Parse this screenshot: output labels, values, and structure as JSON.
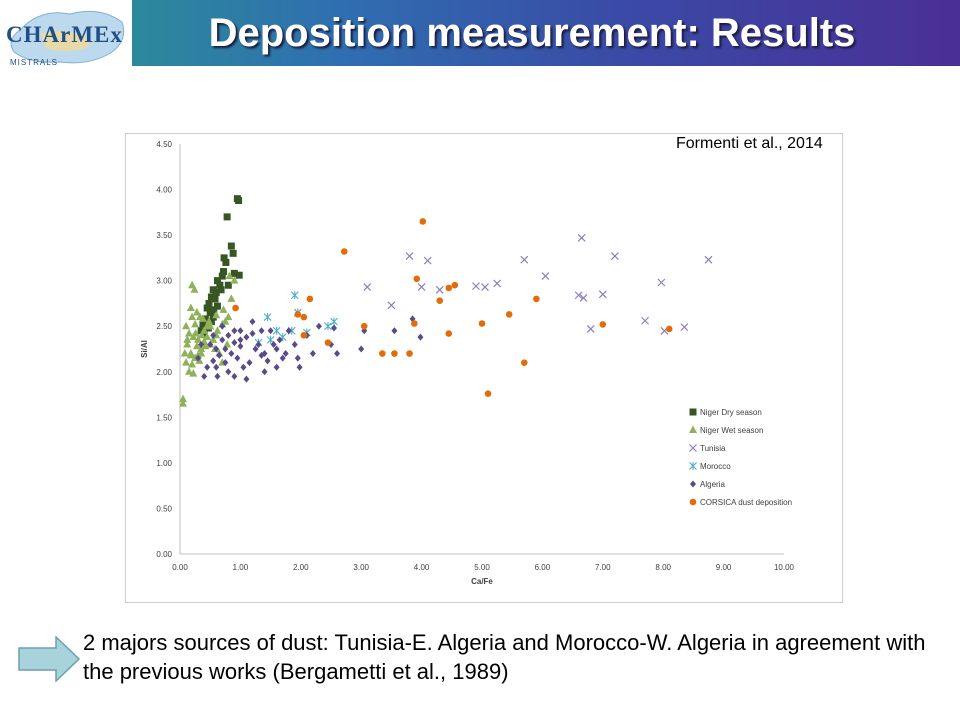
{
  "header": {
    "title": "Deposition measurement: Results",
    "logo_text": "CHArMEx",
    "logo_sub": "MISTRALS"
  },
  "citation": "Formenti et al., 2014",
  "conclusion": "2 majors sources of dust: Tunisia-E. Algeria and Morocco-W. Algeria in agreement with the previous works (Bergametti et al., 1989)",
  "colors": {
    "header_left": "#2a9a8e",
    "header_right": "#4a2f96",
    "arrow_fill": "#a9d3dc",
    "niger_dry": "#375623",
    "niger_wet": "#8fb15a",
    "tunisia": "#8e7cc3",
    "morocco": "#4bacc6",
    "algeria": "#5b4a8b",
    "corsica": "#e36c09"
  },
  "chart_data": {
    "type": "scatter",
    "xlabel": "Ca/Fe",
    "ylabel": "Si/Al",
    "xlim": [
      0,
      10
    ],
    "ylim": [
      0,
      4.5
    ],
    "xticks": [
      "0.00",
      "1.00",
      "2.00",
      "3.00",
      "4.00",
      "5.00",
      "6.00",
      "7.00",
      "8.00",
      "9.00",
      "10.00"
    ],
    "yticks": [
      "0.00",
      "0.50",
      "1.00",
      "1.50",
      "2.00",
      "2.50",
      "3.00",
      "3.50",
      "4.00",
      "4.50"
    ],
    "grid": false,
    "legend_position": "bottom-right",
    "series": [
      {
        "name": "Niger Dry season",
        "marker": "square",
        "color": "#375623",
        "points": [
          [
            0.95,
            3.9
          ],
          [
            0.97,
            3.88
          ],
          [
            0.78,
            3.7
          ],
          [
            0.85,
            3.38
          ],
          [
            0.88,
            3.3
          ],
          [
            0.73,
            3.25
          ],
          [
            0.76,
            3.2
          ],
          [
            0.9,
            3.08
          ],
          [
            0.98,
            3.06
          ],
          [
            0.7,
            3.05
          ],
          [
            0.62,
            3.0
          ],
          [
            0.66,
            2.95
          ],
          [
            0.55,
            2.9
          ],
          [
            0.6,
            2.87
          ],
          [
            0.52,
            2.82
          ],
          [
            0.58,
            2.8
          ],
          [
            0.48,
            2.75
          ],
          [
            0.62,
            2.72
          ],
          [
            0.45,
            2.7
          ],
          [
            0.5,
            2.65
          ],
          [
            0.55,
            2.6
          ],
          [
            0.42,
            2.58
          ],
          [
            0.38,
            2.52
          ],
          [
            0.47,
            2.48
          ],
          [
            0.35,
            2.45
          ],
          [
            0.4,
            2.42
          ],
          [
            0.52,
            2.55
          ],
          [
            0.56,
            2.68
          ],
          [
            0.68,
            2.9
          ],
          [
            0.8,
            2.95
          ],
          [
            0.72,
            3.1
          ]
        ]
      },
      {
        "name": "Niger Wet season",
        "marker": "triangle",
        "color": "#8fb15a",
        "points": [
          [
            0.18,
            2.7
          ],
          [
            0.2,
            2.6
          ],
          [
            0.25,
            2.52
          ],
          [
            0.15,
            2.42
          ],
          [
            0.22,
            2.38
          ],
          [
            0.3,
            2.35
          ],
          [
            0.12,
            2.3
          ],
          [
            0.28,
            2.28
          ],
          [
            0.35,
            2.25
          ],
          [
            0.08,
            2.2
          ],
          [
            0.18,
            2.18
          ],
          [
            0.25,
            2.15
          ],
          [
            0.32,
            2.12
          ],
          [
            0.1,
            2.1
          ],
          [
            0.2,
            2.08
          ],
          [
            0.15,
            2.0
          ],
          [
            0.22,
            1.98
          ],
          [
            0.05,
            1.65
          ],
          [
            0.05,
            1.7
          ],
          [
            0.4,
            2.45
          ],
          [
            0.45,
            2.5
          ],
          [
            0.48,
            2.55
          ],
          [
            0.38,
            2.58
          ],
          [
            0.33,
            2.6
          ],
          [
            0.28,
            2.65
          ],
          [
            0.5,
            2.3
          ],
          [
            0.55,
            2.35
          ],
          [
            0.6,
            2.4
          ],
          [
            0.62,
            2.45
          ],
          [
            0.7,
            2.52
          ],
          [
            0.75,
            2.55
          ],
          [
            0.8,
            2.6
          ],
          [
            0.85,
            2.8
          ],
          [
            0.9,
            3.0
          ],
          [
            0.82,
            3.05
          ],
          [
            0.45,
            2.38
          ],
          [
            0.4,
            2.33
          ],
          [
            0.35,
            2.2
          ],
          [
            0.3,
            2.18
          ],
          [
            0.42,
            2.28
          ],
          [
            0.18,
            2.2
          ],
          [
            0.12,
            2.35
          ],
          [
            0.26,
            2.42
          ],
          [
            0.65,
            2.2
          ],
          [
            0.7,
            2.1
          ],
          [
            0.58,
            2.25
          ],
          [
            0.78,
            2.3
          ],
          [
            0.2,
            2.95
          ],
          [
            0.24,
            2.9
          ],
          [
            0.1,
            2.5
          ],
          [
            0.36,
            2.4
          ],
          [
            0.6,
            2.62
          ],
          [
            0.72,
            2.68
          ],
          [
            0.5,
            2.5
          ]
        ]
      },
      {
        "name": "Tunisia",
        "marker": "x",
        "color": "#8e7cc3",
        "points": [
          [
            6.65,
            3.47
          ],
          [
            3.8,
            3.27
          ],
          [
            4.1,
            3.22
          ],
          [
            5.7,
            3.23
          ],
          [
            7.2,
            3.27
          ],
          [
            8.75,
            3.23
          ],
          [
            6.05,
            3.05
          ],
          [
            3.1,
            2.93
          ],
          [
            4.0,
            2.93
          ],
          [
            4.3,
            2.9
          ],
          [
            4.9,
            2.94
          ],
          [
            5.05,
            2.93
          ],
          [
            5.25,
            2.97
          ],
          [
            7.97,
            2.98
          ],
          [
            6.6,
            2.84
          ],
          [
            6.68,
            2.81
          ],
          [
            7.0,
            2.85
          ],
          [
            3.5,
            2.73
          ],
          [
            7.7,
            2.56
          ],
          [
            6.8,
            2.47
          ],
          [
            8.02,
            2.45
          ],
          [
            8.35,
            2.49
          ]
        ]
      },
      {
        "name": "Morocco",
        "marker": "asterisk",
        "color": "#4bacc6",
        "points": [
          [
            1.9,
            2.84
          ],
          [
            1.95,
            2.65
          ],
          [
            2.55,
            2.55
          ],
          [
            1.45,
            2.6
          ],
          [
            1.6,
            2.45
          ],
          [
            1.85,
            2.45
          ],
          [
            2.1,
            2.43
          ],
          [
            1.7,
            2.38
          ],
          [
            1.5,
            2.35
          ],
          [
            1.3,
            2.32
          ],
          [
            2.45,
            2.5
          ]
        ]
      },
      {
        "name": "Algeria",
        "marker": "diamond",
        "color": "#5b4a8b",
        "points": [
          [
            0.5,
            2.3
          ],
          [
            0.6,
            2.25
          ],
          [
            0.7,
            2.35
          ],
          [
            0.8,
            2.4
          ],
          [
            0.9,
            2.32
          ],
          [
            1.0,
            2.28
          ],
          [
            1.1,
            2.38
          ],
          [
            1.2,
            2.42
          ],
          [
            1.3,
            2.3
          ],
          [
            1.4,
            2.2
          ],
          [
            1.5,
            2.45
          ],
          [
            1.6,
            2.25
          ],
          [
            1.7,
            2.15
          ],
          [
            0.55,
            2.4
          ],
          [
            0.65,
            2.18
          ],
          [
            0.75,
            2.1
          ],
          [
            0.85,
            2.2
          ],
          [
            0.95,
            2.15
          ],
          [
            1.05,
            2.05
          ],
          [
            1.15,
            2.1
          ],
          [
            1.25,
            2.25
          ],
          [
            1.35,
            2.18
          ],
          [
            1.45,
            2.12
          ],
          [
            1.55,
            2.3
          ],
          [
            1.65,
            2.35
          ],
          [
            1.75,
            2.2
          ],
          [
            0.45,
            2.05
          ],
          [
            0.4,
            1.95
          ],
          [
            0.62,
            1.95
          ],
          [
            0.9,
            1.95
          ],
          [
            1.1,
            1.92
          ],
          [
            1.4,
            2.0
          ],
          [
            1.9,
            2.3
          ],
          [
            1.95,
            2.15
          ],
          [
            1.98,
            2.05
          ],
          [
            2.1,
            2.4
          ],
          [
            2.2,
            2.2
          ],
          [
            2.3,
            2.5
          ],
          [
            2.5,
            2.3
          ],
          [
            2.6,
            2.2
          ],
          [
            2.55,
            2.48
          ],
          [
            3.0,
            2.25
          ],
          [
            3.05,
            2.45
          ],
          [
            3.55,
            2.45
          ],
          [
            3.85,
            2.58
          ],
          [
            3.98,
            2.38
          ],
          [
            0.7,
            2.5
          ],
          [
            1.0,
            2.45
          ],
          [
            1.2,
            2.55
          ],
          [
            0.8,
            2.0
          ],
          [
            0.6,
            2.05
          ],
          [
            0.3,
            2.15
          ],
          [
            0.35,
            2.3
          ],
          [
            1.8,
            2.45
          ],
          [
            1.35,
            2.45
          ],
          [
            1.0,
            2.35
          ],
          [
            0.9,
            2.45
          ],
          [
            0.75,
            2.25
          ],
          [
            0.55,
            2.12
          ],
          [
            1.6,
            2.05
          ]
        ]
      },
      {
        "name": "CORSICA dust deposition",
        "marker": "circle",
        "color": "#e36c09",
        "points": [
          [
            4.02,
            3.65
          ],
          [
            2.72,
            3.32
          ],
          [
            3.92,
            3.02
          ],
          [
            4.55,
            2.95
          ],
          [
            4.45,
            2.92
          ],
          [
            2.15,
            2.8
          ],
          [
            4.3,
            2.78
          ],
          [
            5.9,
            2.8
          ],
          [
            5.45,
            2.63
          ],
          [
            1.95,
            2.63
          ],
          [
            2.05,
            2.6
          ],
          [
            3.05,
            2.5
          ],
          [
            3.88,
            2.53
          ],
          [
            5.0,
            2.53
          ],
          [
            7.0,
            2.52
          ],
          [
            2.05,
            2.4
          ],
          [
            4.45,
            2.42
          ],
          [
            8.1,
            2.47
          ],
          [
            2.45,
            2.32
          ],
          [
            3.35,
            2.2
          ],
          [
            3.55,
            2.2
          ],
          [
            3.8,
            2.2
          ],
          [
            5.7,
            2.1
          ],
          [
            5.1,
            1.76
          ],
          [
            0.92,
            2.7
          ]
        ]
      }
    ]
  }
}
